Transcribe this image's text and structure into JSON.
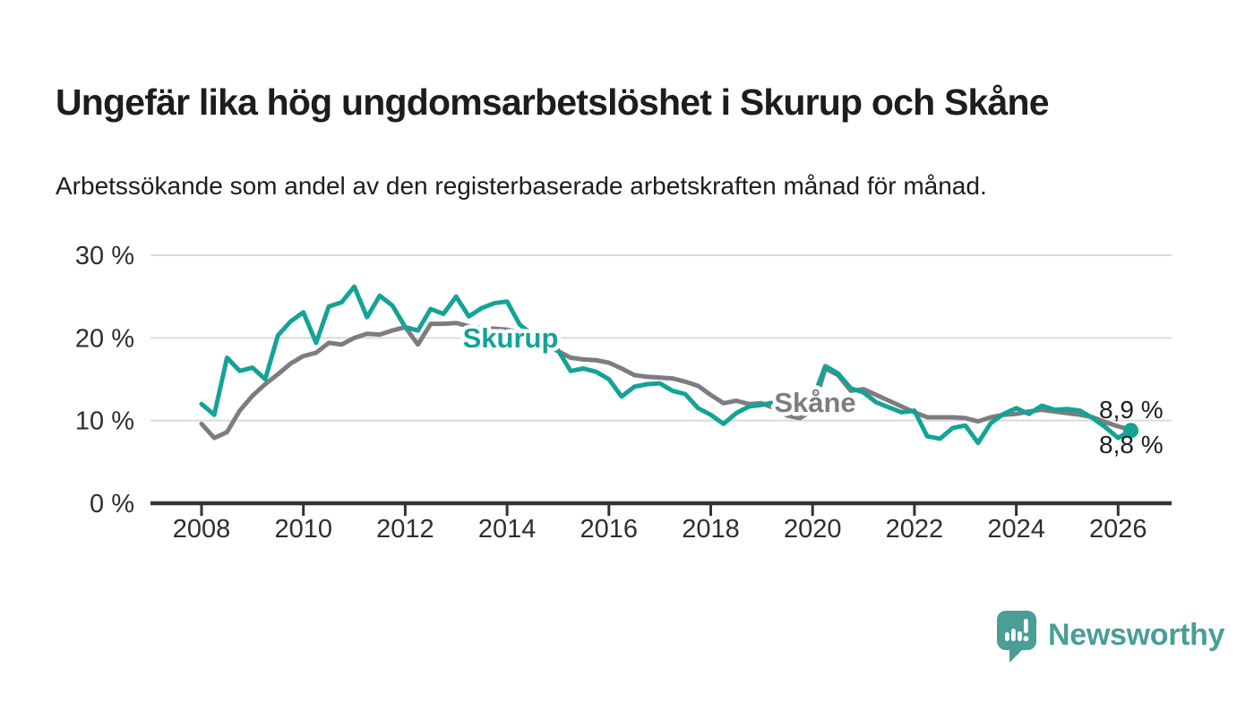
{
  "header": {
    "title": "Ungefär lika hög ungdomsarbetslöshet i Skurup och Skåne",
    "subtitle": "Arbetssökande som andel av den registerbaserade arbetskraften månad för månad."
  },
  "chart_data": {
    "type": "line",
    "title": "Ungefär lika hög ungdomsarbetslöshet i Skurup och Skåne",
    "subtitle": "Arbetssökande som andel av den registerbaserade arbetskraften månad för månad.",
    "unit": "%",
    "grid": "horizontal-only",
    "legend": "inline-labels",
    "ylim": [
      0,
      30
    ],
    "y_ticks": [
      "30 %",
      "20 %",
      "10 %",
      "0 %"
    ],
    "y_tick_values": [
      30,
      20,
      10,
      0
    ],
    "x_ticks": [
      "2008",
      "2010",
      "2012",
      "2014",
      "2016",
      "2018",
      "2020",
      "2022",
      "2024",
      "2026"
    ],
    "x_tick_values": [
      2008,
      2010,
      2012,
      2014,
      2016,
      2018,
      2020,
      2022,
      2024,
      2026
    ],
    "x_start": 2008,
    "x_step_years": 0.25,
    "series": [
      {
        "name": "Skurup",
        "color": "#14a396",
        "end_label": "8,8 %",
        "end_value": 8.8,
        "values": [
          12.0,
          10.7,
          17.6,
          16.0,
          16.4,
          15.0,
          20.3,
          22.0,
          23.1,
          19.4,
          23.8,
          24.3,
          26.2,
          22.5,
          25.1,
          23.9,
          21.3,
          20.9,
          23.5,
          22.9,
          25.0,
          22.6,
          23.6,
          24.2,
          24.4,
          21.6,
          20.4,
          18.9,
          18.5,
          16.0,
          16.3,
          15.9,
          15.0,
          12.9,
          14.1,
          14.4,
          14.5,
          13.6,
          13.2,
          11.5,
          10.7,
          9.6,
          10.9,
          11.7,
          11.9,
          12.2,
          11.8,
          11.5,
          12.5,
          16.6,
          15.7,
          13.9,
          13.4,
          12.2,
          11.6,
          11.0,
          11.2,
          8.1,
          7.8,
          9.1,
          9.4,
          7.3,
          9.7,
          10.8,
          11.5,
          10.8,
          11.8,
          11.3,
          11.4,
          11.2,
          10.3,
          9.2,
          7.9,
          8.8
        ]
      },
      {
        "name": "Skåne",
        "color": "#7d7c80",
        "end_label": "8,9 %",
        "end_value": 8.9,
        "values": [
          9.6,
          7.9,
          8.6,
          11.2,
          13.0,
          14.4,
          15.6,
          16.9,
          17.8,
          18.2,
          19.4,
          19.2,
          20.0,
          20.5,
          20.4,
          20.9,
          21.3,
          19.2,
          21.7,
          21.7,
          21.8,
          21.4,
          21.2,
          21.1,
          21.0,
          20.6,
          19.8,
          19.0,
          18.4,
          17.6,
          17.4,
          17.3,
          17.0,
          16.3,
          15.5,
          15.3,
          15.2,
          15.1,
          14.7,
          14.2,
          13.1,
          12.1,
          12.4,
          12.0,
          12.1,
          11.5,
          10.6,
          10.3,
          11.2,
          16.3,
          15.5,
          13.6,
          13.8,
          13.1,
          12.4,
          11.7,
          11.0,
          10.4,
          10.4,
          10.4,
          10.3,
          9.9,
          10.4,
          10.7,
          10.8,
          11.1,
          11.3,
          11.1,
          10.9,
          10.7,
          10.4,
          9.8,
          9.3,
          8.9
        ]
      }
    ]
  },
  "footer": {
    "brand": "Newsworthy",
    "brand_color": "#4a9e97"
  },
  "colors": {
    "background": "#ffffff",
    "text": "#1d1d1d",
    "grid": "#dadada",
    "axis": "#333333",
    "skurup": "#14a396",
    "skane": "#7d7c80"
  }
}
